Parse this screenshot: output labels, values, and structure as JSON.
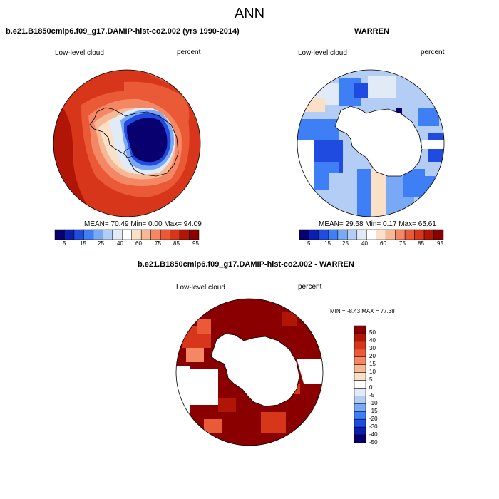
{
  "figure": {
    "title": "ANN"
  },
  "colors": {
    "levels15": [
      "#08006f",
      "#0a1fb0",
      "#1f4be0",
      "#3f7ff5",
      "#79a8f5",
      "#b3cdf5",
      "#e1ebf8",
      "#ffffff",
      "#fbe0c8",
      "#f7b896",
      "#f58864",
      "#ea5a37",
      "#d8361a",
      "#b01505",
      "#8a0000"
    ],
    "diff_levels": [
      "#8a0000",
      "#b01505",
      "#d8361a",
      "#ea5a37",
      "#f58864",
      "#f7b896",
      "#fbe0c8",
      "#ffffff",
      "#e1ebf8",
      "#b3cdf5",
      "#79a8f5",
      "#3f7ff5",
      "#1f4be0",
      "#0a1fb0",
      "#08006f"
    ],
    "land": "#ffffff",
    "coast": "#000000"
  },
  "panels": {
    "model": {
      "title": "b.e21.B1850cmip6.f09_g17.DAMIP-hist-co2.002 (yrs 1990-2014)",
      "left_label": "Low-level cloud",
      "right_label": "percent",
      "stats": "MEAN=  70.49  Min=   0.00  Max=  94.09"
    },
    "obs": {
      "title": "WARREN",
      "left_label": "Low-level cloud",
      "right_label": "percent",
      "stats": "MEAN=  29.68  Min=   0.17  Max=  65.61"
    },
    "diff": {
      "title": "b.e21.B1850cmip6.f09_g17.DAMIP-hist-co2.002 - WARREN",
      "left_label": "Low-level cloud",
      "right_label": "percent",
      "stats": "MIN =  -8.43 MAX =  77.38"
    }
  },
  "chart_data": [
    {
      "type": "heatmap",
      "projection": "south-polar-stereographic",
      "title": "b.e21.B1850cmip6.f09_g17.DAMIP-hist-co2.002 (yrs 1990-2014)",
      "variable": "Low-level cloud",
      "units": "percent",
      "mean": 70.49,
      "min": 0.0,
      "max": 94.09,
      "colorbar_ticks": [
        "5",
        "15",
        "25",
        "40",
        "60",
        "75",
        "85",
        "95"
      ]
    },
    {
      "type": "heatmap",
      "projection": "south-polar-stereographic",
      "title": "WARREN",
      "variable": "Low-level cloud",
      "units": "percent",
      "mean": 29.68,
      "min": 0.17,
      "max": 65.61,
      "colorbar_ticks": [
        "5",
        "15",
        "25",
        "40",
        "60",
        "75",
        "85",
        "95"
      ]
    },
    {
      "type": "heatmap",
      "projection": "south-polar-stereographic",
      "title": "b.e21.B1850cmip6.f09_g17.DAMIP-hist-co2.002 - WARREN",
      "variable": "Low-level cloud",
      "units": "percent",
      "min": -8.43,
      "max": 77.38,
      "colorbar_ticks": [
        "50",
        "40",
        "30",
        "20",
        "15",
        "10",
        "5",
        "0",
        "-5",
        "-10",
        "-15",
        "-20",
        "-30",
        "-40",
        "-50"
      ]
    }
  ]
}
